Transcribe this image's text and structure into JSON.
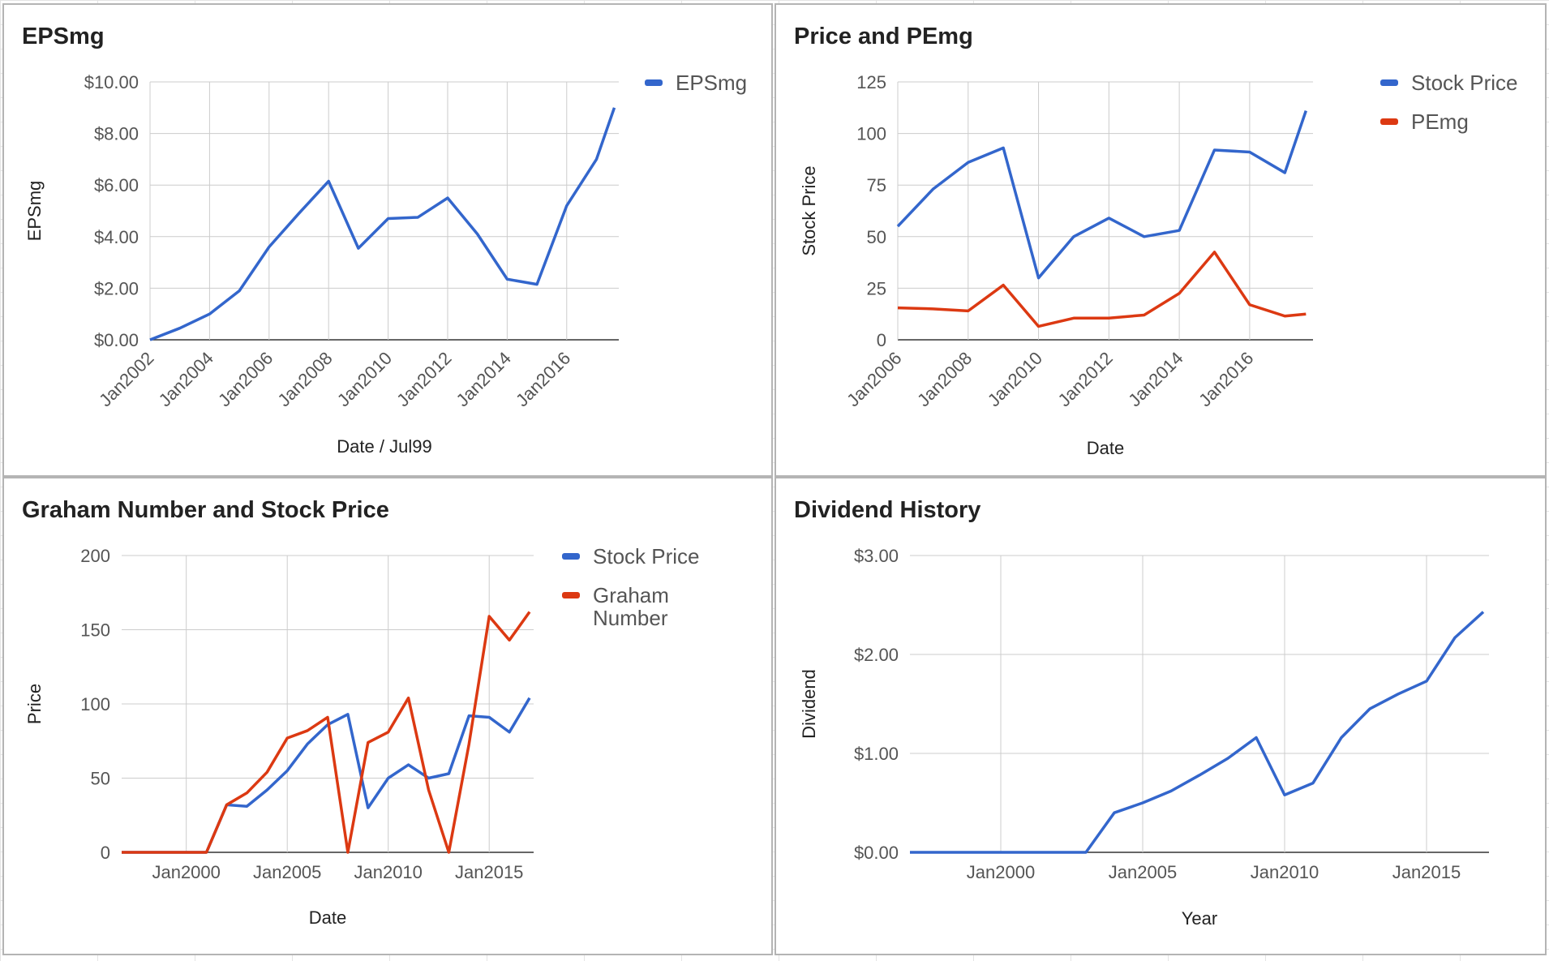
{
  "charts": [
    {
      "title": "EPSmg",
      "type": "line",
      "xlabel": "Date / Jul99",
      "ylabel": "EPSmg",
      "x_ticks": [
        "Jan2002",
        "Jan2004",
        "Jan2006",
        "Jan2008",
        "Jan2010",
        "Jan2012",
        "Jan2014",
        "Jan2016"
      ],
      "y_ticks": [
        "$0.00",
        "$2.00",
        "$4.00",
        "$6.00",
        "$8.00",
        "$10.00"
      ],
      "ylim": [
        0,
        10
      ],
      "xlim": [
        2002,
        2017.75
      ],
      "x_ticks_rotated": true,
      "legend": "right",
      "series": [
        {
          "name": "EPSmg",
          "color": "#3366cc",
          "x": [
            2002,
            2003,
            2004,
            2005,
            2006,
            2007,
            2008,
            2009,
            2010,
            2011,
            2012,
            2013,
            2014,
            2015,
            2016,
            2017,
            2017.6
          ],
          "values": [
            0.0,
            0.45,
            1.0,
            1.9,
            3.6,
            4.9,
            6.15,
            3.55,
            4.7,
            4.75,
            5.5,
            4.1,
            2.35,
            2.15,
            5.2,
            7.0,
            9.0
          ]
        }
      ]
    },
    {
      "title": "Price and PEmg",
      "type": "line",
      "xlabel": "Date",
      "ylabel": "Stock Price",
      "x_ticks": [
        "Jan2006",
        "Jan2008",
        "Jan2010",
        "Jan2012",
        "Jan2014",
        "Jan2016"
      ],
      "y_ticks": [
        "0",
        "25",
        "50",
        "75",
        "100",
        "125"
      ],
      "ylim": [
        0,
        125
      ],
      "xlim": [
        2006,
        2017.8
      ],
      "x_ticks_rotated": true,
      "legend": "right",
      "series": [
        {
          "name": "Stock Price",
          "color": "#3366cc",
          "x": [
            2006,
            2007,
            2008,
            2009,
            2010,
            2011,
            2012,
            2013,
            2014,
            2015,
            2016,
            2017,
            2017.6
          ],
          "values": [
            55,
            73,
            86,
            93,
            30,
            50,
            59,
            50,
            53,
            92,
            91,
            81,
            111
          ]
        },
        {
          "name": "PEmg",
          "color": "#dc3912",
          "x": [
            2006,
            2007,
            2008,
            2009,
            2010,
            2011,
            2012,
            2013,
            2014,
            2015,
            2016,
            2017,
            2017.6
          ],
          "values": [
            15.5,
            15,
            14,
            26.5,
            6.5,
            10.5,
            10.5,
            12,
            22.5,
            42.5,
            17,
            11.5,
            12.5
          ]
        }
      ]
    },
    {
      "title": "Graham Number and Stock Price",
      "type": "line",
      "xlabel": "Date",
      "ylabel": "Price",
      "x_ticks": [
        "Jan2000",
        "Jan2005",
        "Jan2010",
        "Jan2015"
      ],
      "y_ticks": [
        "0",
        "50",
        "100",
        "150",
        "200"
      ],
      "ylim": [
        0,
        200
      ],
      "xlim": [
        1996.8,
        2017.2
      ],
      "x_ticks_rotated": false,
      "legend": "right",
      "series": [
        {
          "name": "Stock Price",
          "color": "#3366cc",
          "x": [
            1996.8,
            1998,
            1999,
            2000,
            2001,
            2002,
            2003,
            2004,
            2005,
            2006,
            2007,
            2008,
            2009,
            2010,
            2011,
            2012,
            2013,
            2014,
            2015,
            2016,
            2017
          ],
          "values": [
            0,
            0,
            0,
            0,
            0,
            32,
            31,
            42,
            55,
            73,
            86,
            93,
            30,
            50,
            59,
            50,
            53,
            92,
            91,
            81,
            104
          ]
        },
        {
          "name": "Graham Number",
          "color": "#dc3912",
          "x": [
            1996.8,
            1998,
            1999,
            2000,
            2001,
            2002,
            2003,
            2004,
            2005,
            2006,
            2007,
            2008,
            2009,
            2010,
            2011,
            2012,
            2013,
            2014,
            2015,
            2016,
            2017
          ],
          "values": [
            0,
            0,
            0,
            0,
            0,
            32,
            40,
            54,
            77,
            82,
            91,
            0,
            74,
            81,
            104,
            42,
            0,
            73,
            159,
            143,
            162
          ]
        }
      ]
    },
    {
      "title": "Dividend History",
      "type": "line",
      "xlabel": "Year",
      "ylabel": "Dividend",
      "x_ticks": [
        "Jan2000",
        "Jan2005",
        "Jan2010",
        "Jan2015"
      ],
      "y_ticks": [
        "$0.00",
        "$1.00",
        "$2.00",
        "$3.00"
      ],
      "ylim": [
        0,
        3
      ],
      "xlim": [
        1996.8,
        2017.2
      ],
      "x_ticks_rotated": false,
      "legend": "none",
      "series": [
        {
          "name": "",
          "color": "#3366cc",
          "x": [
            1996.8,
            1998,
            1999,
            2000,
            2001,
            2002,
            2003,
            2004,
            2005,
            2006,
            2007,
            2008,
            2009,
            2010,
            2011,
            2012,
            2013,
            2014,
            2015,
            2016,
            2017
          ],
          "values": [
            0,
            0,
            0,
            0,
            0,
            0,
            0,
            0.4,
            0.5,
            0.62,
            0.78,
            0.95,
            1.16,
            0.58,
            0.7,
            1.16,
            1.45,
            1.6,
            1.73,
            2.17,
            2.43
          ]
        }
      ]
    }
  ]
}
